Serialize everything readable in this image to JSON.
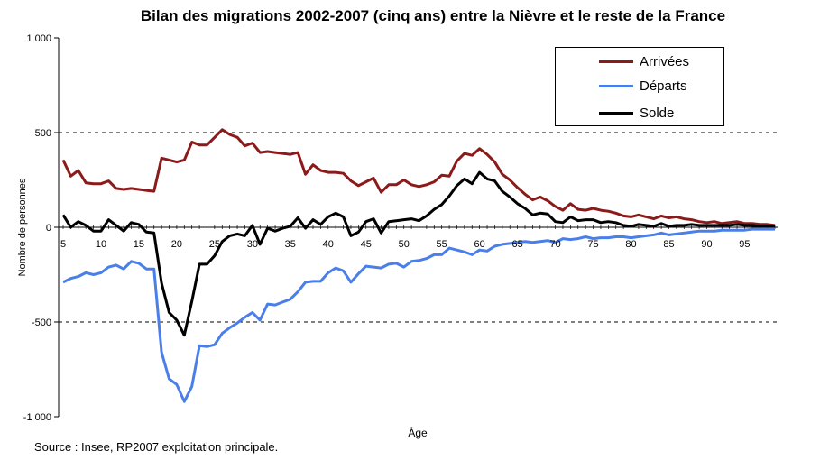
{
  "chart_data": {
    "type": "line",
    "title": "Bilan des migrations 2002-2007 (cinq ans) entre la Nièvre et le reste de la France",
    "xlabel": "Âge",
    "ylabel": "Nombre de personnes",
    "xlim": [
      5,
      99
    ],
    "ylim": [
      -1000,
      1000
    ],
    "xticks": [
      5,
      10,
      15,
      20,
      25,
      30,
      35,
      40,
      45,
      50,
      55,
      60,
      65,
      70,
      75,
      80,
      85,
      90,
      95
    ],
    "yticks": [
      {
        "value": 1000,
        "label": "1 000"
      },
      {
        "value": 500,
        "label": "500"
      },
      {
        "value": 0,
        "label": "0"
      },
      {
        "value": -500,
        "label": "-500"
      },
      {
        "value": -1000,
        "label": "-1 000"
      }
    ],
    "grid": "horizontal dashed at ±500",
    "legend_position": "top-right",
    "x": [
      5,
      6,
      7,
      8,
      9,
      10,
      11,
      12,
      13,
      14,
      15,
      16,
      17,
      18,
      19,
      20,
      21,
      22,
      23,
      24,
      25,
      26,
      27,
      28,
      29,
      30,
      31,
      32,
      33,
      34,
      35,
      36,
      37,
      38,
      39,
      40,
      41,
      42,
      43,
      44,
      45,
      46,
      47,
      48,
      49,
      50,
      51,
      52,
      53,
      54,
      55,
      56,
      57,
      58,
      59,
      60,
      61,
      62,
      63,
      64,
      65,
      66,
      67,
      68,
      69,
      70,
      71,
      72,
      73,
      74,
      75,
      76,
      77,
      78,
      79,
      80,
      81,
      82,
      83,
      84,
      85,
      86,
      87,
      88,
      89,
      90,
      91,
      92,
      93,
      94,
      95,
      96,
      97,
      98,
      99
    ],
    "series": [
      {
        "name": "Arrivées",
        "color": "#8b1a1a",
        "values": [
          355,
          270,
          300,
          235,
          230,
          230,
          245,
          205,
          200,
          205,
          200,
          195,
          190,
          365,
          355,
          345,
          355,
          450,
          435,
          435,
          475,
          515,
          490,
          475,
          430,
          445,
          395,
          400,
          395,
          390,
          385,
          395,
          280,
          330,
          300,
          290,
          290,
          285,
          245,
          220,
          240,
          260,
          185,
          225,
          225,
          250,
          225,
          215,
          225,
          240,
          275,
          270,
          350,
          390,
          380,
          415,
          385,
          345,
          280,
          250,
          210,
          175,
          145,
          160,
          140,
          110,
          90,
          125,
          95,
          90,
          100,
          90,
          85,
          75,
          60,
          55,
          65,
          55,
          45,
          60,
          50,
          55,
          45,
          40,
          30,
          25,
          30,
          20,
          25,
          30,
          20,
          20,
          15,
          15,
          10
        ]
      },
      {
        "name": "Départs",
        "color": "#4a7ee8",
        "values": [
          -290,
          -270,
          -260,
          -240,
          -250,
          -240,
          -210,
          -200,
          -220,
          -180,
          -190,
          -220,
          -220,
          -660,
          -800,
          -830,
          -920,
          -840,
          -625,
          -630,
          -620,
          -560,
          -530,
          -505,
          -475,
          -450,
          -490,
          -405,
          -410,
          -395,
          -380,
          -340,
          -290,
          -285,
          -285,
          -240,
          -215,
          -230,
          -290,
          -245,
          -205,
          -210,
          -215,
          -195,
          -190,
          -210,
          -180,
          -175,
          -165,
          -145,
          -145,
          -110,
          -120,
          -130,
          -145,
          -120,
          -125,
          -100,
          -90,
          -85,
          -80,
          -75,
          -80,
          -75,
          -70,
          -80,
          -60,
          -65,
          -60,
          -50,
          -60,
          -55,
          -55,
          -50,
          -50,
          -55,
          -50,
          -45,
          -40,
          -30,
          -40,
          -35,
          -30,
          -25,
          -20,
          -20,
          -20,
          -15,
          -15,
          -15,
          -15,
          -10,
          -10,
          -10,
          -10
        ]
      },
      {
        "name": "Solde",
        "color": "#000000",
        "values": [
          65,
          0,
          30,
          10,
          -20,
          -20,
          40,
          10,
          -20,
          25,
          15,
          -25,
          -30,
          -295,
          -450,
          -490,
          -570,
          -390,
          -195,
          -195,
          -150,
          -75,
          -45,
          -35,
          -45,
          10,
          -90,
          -5,
          -20,
          -5,
          5,
          50,
          -5,
          40,
          15,
          55,
          75,
          55,
          -45,
          -25,
          30,
          45,
          -30,
          30,
          35,
          40,
          45,
          35,
          60,
          95,
          120,
          165,
          220,
          255,
          230,
          290,
          255,
          245,
          190,
          160,
          125,
          100,
          65,
          75,
          70,
          30,
          25,
          55,
          35,
          40,
          40,
          25,
          30,
          25,
          10,
          5,
          15,
          10,
          5,
          20,
          5,
          10,
          10,
          15,
          10,
          10,
          10,
          10,
          10,
          15,
          10,
          10,
          5,
          5,
          5
        ]
      }
    ]
  },
  "source": "Source : Insee, RP2007 exploitation principale."
}
